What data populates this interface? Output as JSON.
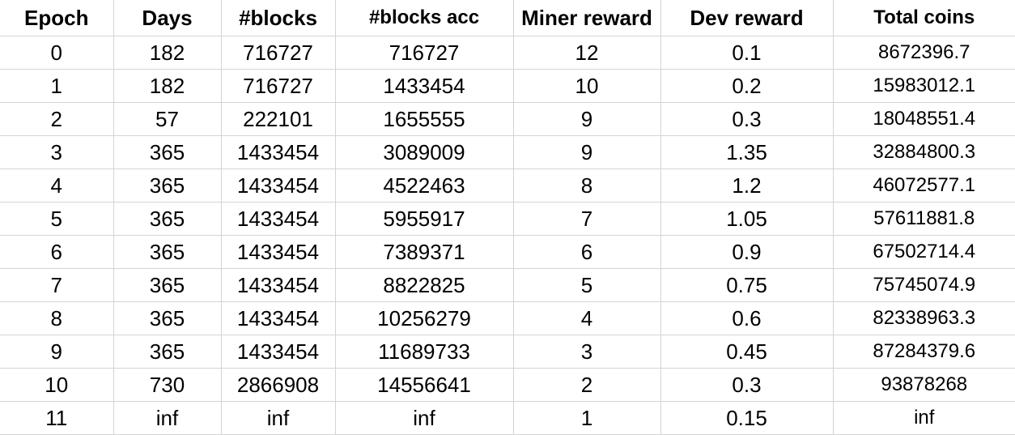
{
  "table": {
    "headers": [
      "Epoch",
      "Days",
      "#blocks",
      "#blocks acc",
      "Miner reward",
      "Dev reward",
      "Total coins"
    ],
    "rows": [
      [
        "0",
        "182",
        "716727",
        "716727",
        "12",
        "0.1",
        "8672396.7"
      ],
      [
        "1",
        "182",
        "716727",
        "1433454",
        "10",
        "0.2",
        "15983012.1"
      ],
      [
        "2",
        "57",
        "222101",
        "1655555",
        "9",
        "0.3",
        "18048551.4"
      ],
      [
        "3",
        "365",
        "1433454",
        "3089009",
        "9",
        "1.35",
        "32884800.3"
      ],
      [
        "4",
        "365",
        "1433454",
        "4522463",
        "8",
        "1.2",
        "46072577.1"
      ],
      [
        "5",
        "365",
        "1433454",
        "5955917",
        "7",
        "1.05",
        "57611881.8"
      ],
      [
        "6",
        "365",
        "1433454",
        "7389371",
        "6",
        "0.9",
        "67502714.4"
      ],
      [
        "7",
        "365",
        "1433454",
        "8822825",
        "5",
        "0.75",
        "75745074.9"
      ],
      [
        "8",
        "365",
        "1433454",
        "10256279",
        "4",
        "0.6",
        "82338963.3"
      ],
      [
        "9",
        "365",
        "1433454",
        "11689733",
        "3",
        "0.45",
        "87284379.6"
      ],
      [
        "10",
        "730",
        "2866908",
        "14556641",
        "2",
        "0.3",
        "93878268"
      ],
      [
        "11",
        "inf",
        "inf",
        "inf",
        "1",
        "0.15",
        "inf"
      ]
    ]
  }
}
